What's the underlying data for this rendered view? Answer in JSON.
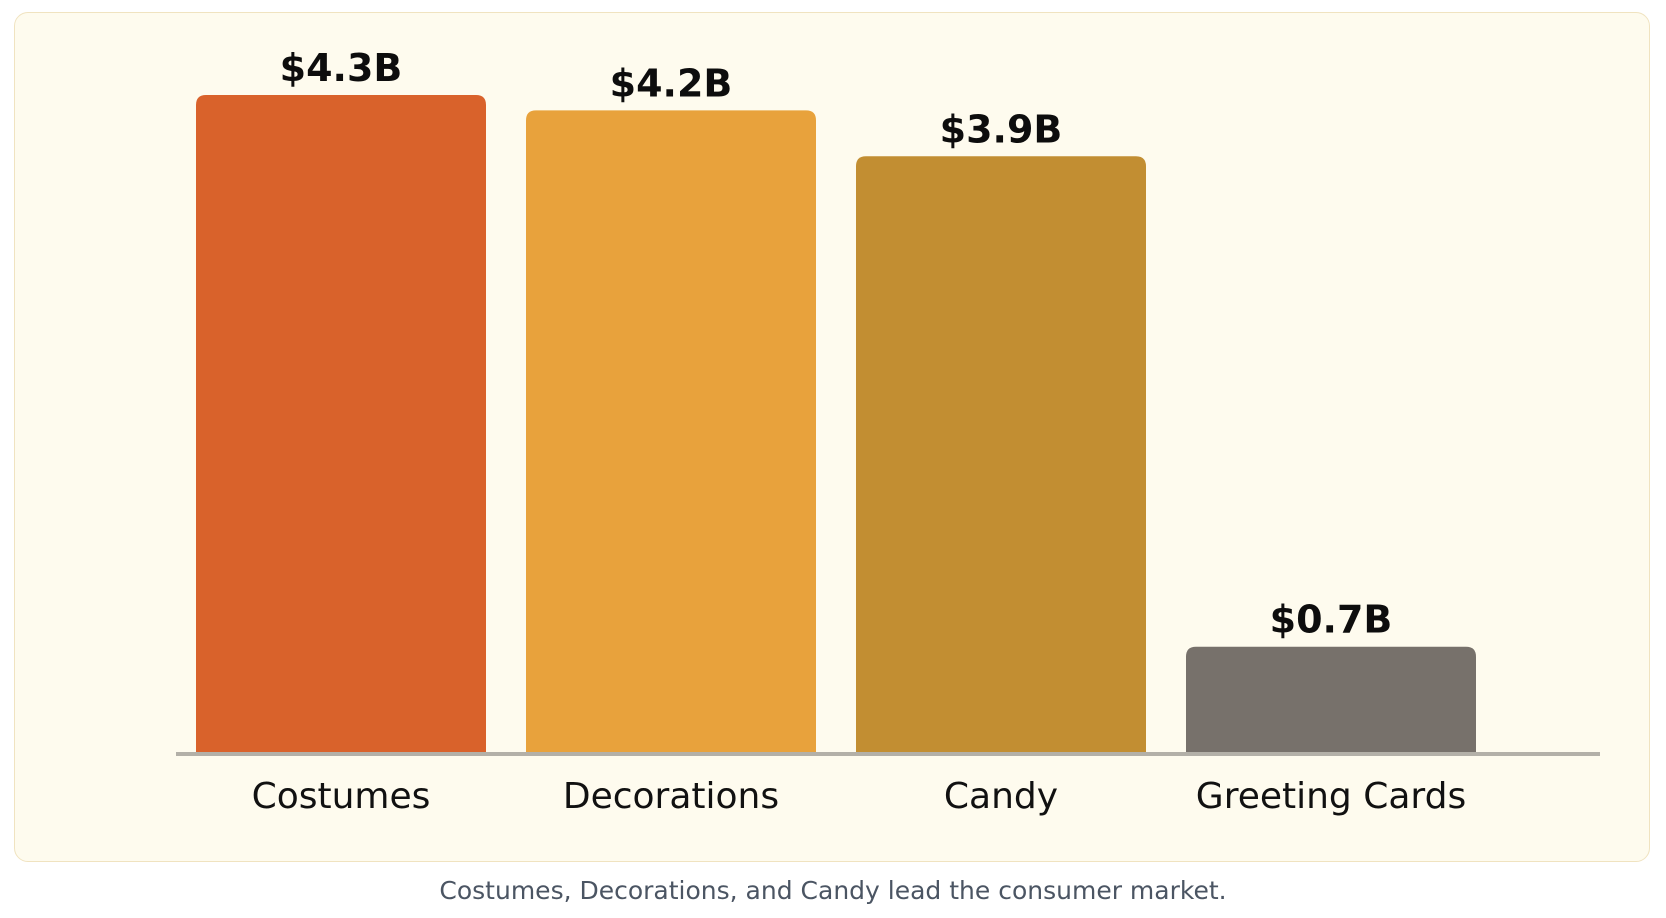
{
  "chart_data": {
    "type": "bar",
    "categories": [
      "Costumes",
      "Decorations",
      "Candy",
      "Greeting Cards"
    ],
    "values": [
      4.3,
      4.2,
      3.9,
      0.7
    ],
    "value_labels": [
      "$4.3B",
      "$4.2B",
      "$3.9B",
      "$0.7B"
    ],
    "colors": [
      "#d9622b",
      "#e8a23c",
      "#c28e32",
      "#77716b"
    ],
    "unit": "$B",
    "ylim": [
      0,
      4.3
    ],
    "title": "",
    "xlabel": "",
    "ylabel": "",
    "grid": false
  },
  "caption": "Costumes, Decorations, and Candy lead the consumer market."
}
